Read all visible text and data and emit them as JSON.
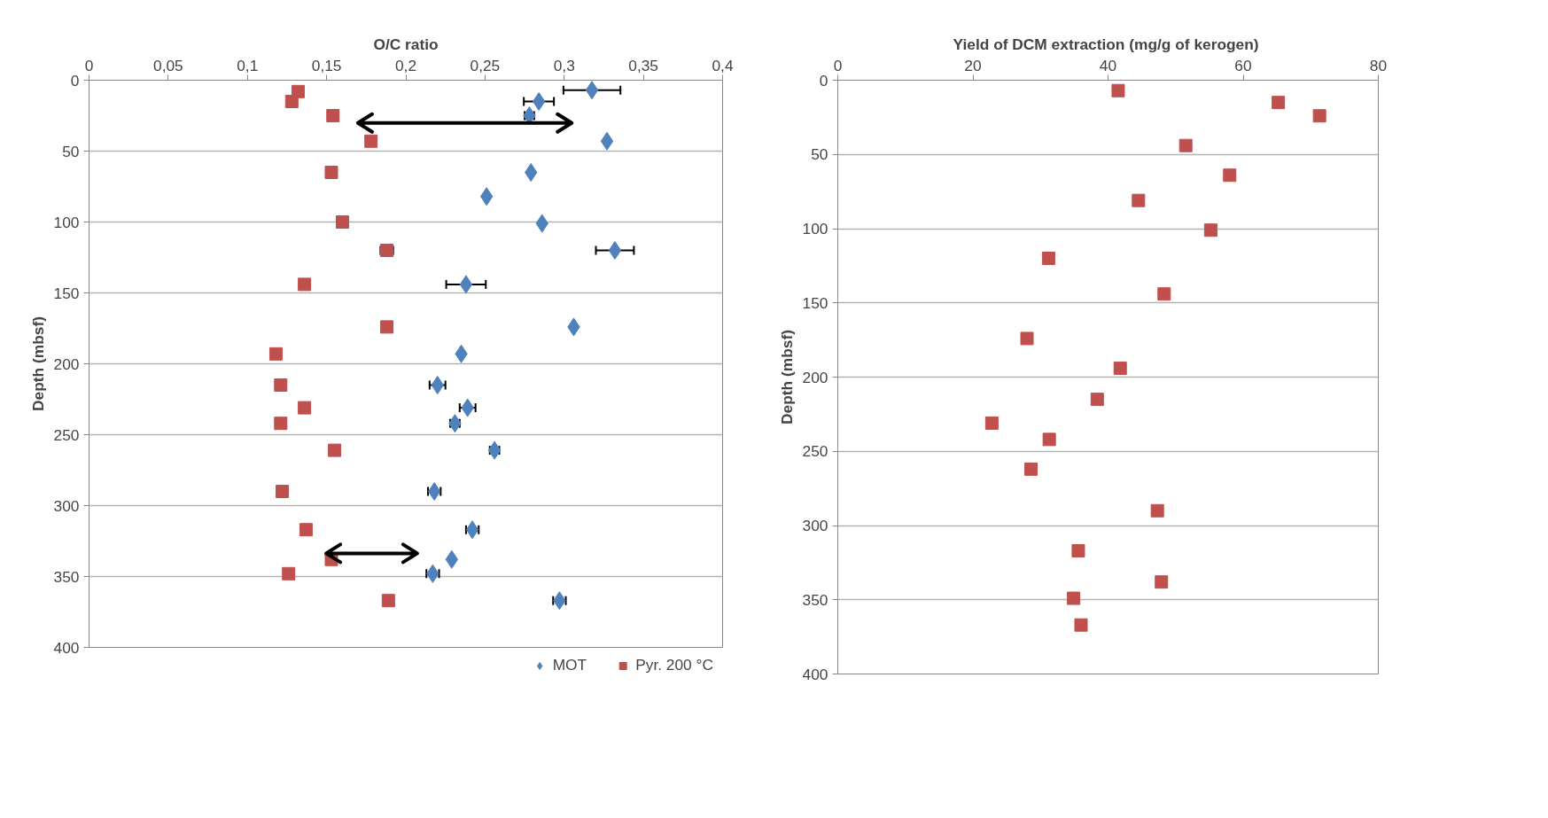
{
  "chart_data": [
    {
      "type": "scatter",
      "xlabel": "O/C ratio",
      "ylabel": "Depth (mbsf)",
      "xlim": [
        0,
        0.4
      ],
      "xticks": [
        0,
        {
          "value": 0.05,
          "label": "0,05"
        },
        {
          "value": 0.1,
          "label": "0,1"
        },
        {
          "value": 0.15,
          "label": "0,15"
        },
        {
          "value": 0.2,
          "label": "0,2"
        },
        {
          "value": 0.25,
          "label": "0,25"
        },
        {
          "value": 0.3,
          "label": "0,3"
        },
        {
          "value": 0.35,
          "label": "0,35"
        },
        {
          "value": 0.4,
          "label": "0,4"
        }
      ],
      "ylim": [
        400,
        0
      ],
      "yticks": [
        0,
        50,
        100,
        150,
        200,
        250,
        300,
        350,
        400
      ],
      "grid": "y",
      "legend": "bottom",
      "series": [
        {
          "name": "MOT",
          "color": "#4f81bd",
          "marker": "diamond",
          "x": [
            0.3175,
            0.284,
            0.278,
            0.327,
            0.279,
            0.251,
            0.286,
            0.332,
            0.238,
            0.306,
            0.235,
            0.22,
            0.239,
            0.231,
            0.256,
            0.218,
            0.242,
            0.229,
            0.217,
            0.297
          ],
          "values": [
            7,
            15,
            25,
            43,
            65,
            82,
            101,
            120,
            144,
            174,
            193,
            215,
            231,
            242,
            261,
            290,
            317,
            338,
            348,
            367
          ],
          "xerrors": [
            0.018,
            0.0095,
            0.003,
            null,
            null,
            null,
            null,
            0.012,
            0.0125,
            null,
            null,
            0.005,
            0.005,
            0.003,
            0.003,
            0.004,
            0.004,
            null,
            0.004,
            0.004
          ]
        },
        {
          "name": "Pyr. 200 °C",
          "color": "#c0504d",
          "marker": "square",
          "x": [
            0.132,
            0.128,
            0.154,
            0.178,
            0.153,
            0.16,
            0.188,
            0.136,
            0.188,
            0.118,
            0.121,
            0.136,
            0.121,
            0.155,
            0.122,
            0.137,
            0.153,
            0.126,
            0.189
          ],
          "values": [
            8,
            15,
            25,
            43,
            65,
            100,
            120,
            144,
            174,
            193,
            215,
            231,
            242,
            261,
            290,
            317,
            338,
            348,
            367
          ],
          "xerrors": [
            null,
            null,
            null,
            null,
            null,
            null,
            0.004,
            null,
            null,
            null,
            null,
            null,
            null,
            null,
            null,
            null,
            null,
            null,
            null
          ]
        }
      ]
    },
    {
      "type": "scatter",
      "xlabel": "Yield of DCM extraction (mg/g of  kerogen)",
      "ylabel": "Depth (mbsf)",
      "xlim": [
        0,
        80
      ],
      "xticks": [
        0,
        20,
        40,
        60,
        80
      ],
      "ylim": [
        400,
        0
      ],
      "yticks": [
        0,
        50,
        100,
        150,
        200,
        250,
        300,
        350,
        400
      ],
      "grid": "y",
      "series": [
        {
          "color": "#c0504d",
          "marker": "square",
          "x": [
            41.5,
            65.2,
            71.3,
            51.5,
            58.0,
            44.5,
            55.2,
            31.2,
            48.3,
            28.0,
            41.8,
            38.4,
            22.8,
            31.3,
            28.6,
            47.3,
            35.6,
            47.9,
            34.9,
            36.0
          ],
          "values": [
            7,
            15,
            24,
            44,
            64,
            81,
            101,
            120,
            144,
            174,
            194,
            215,
            231,
            242,
            262,
            290,
            317,
            338,
            349,
            367
          ]
        }
      ]
    }
  ]
}
